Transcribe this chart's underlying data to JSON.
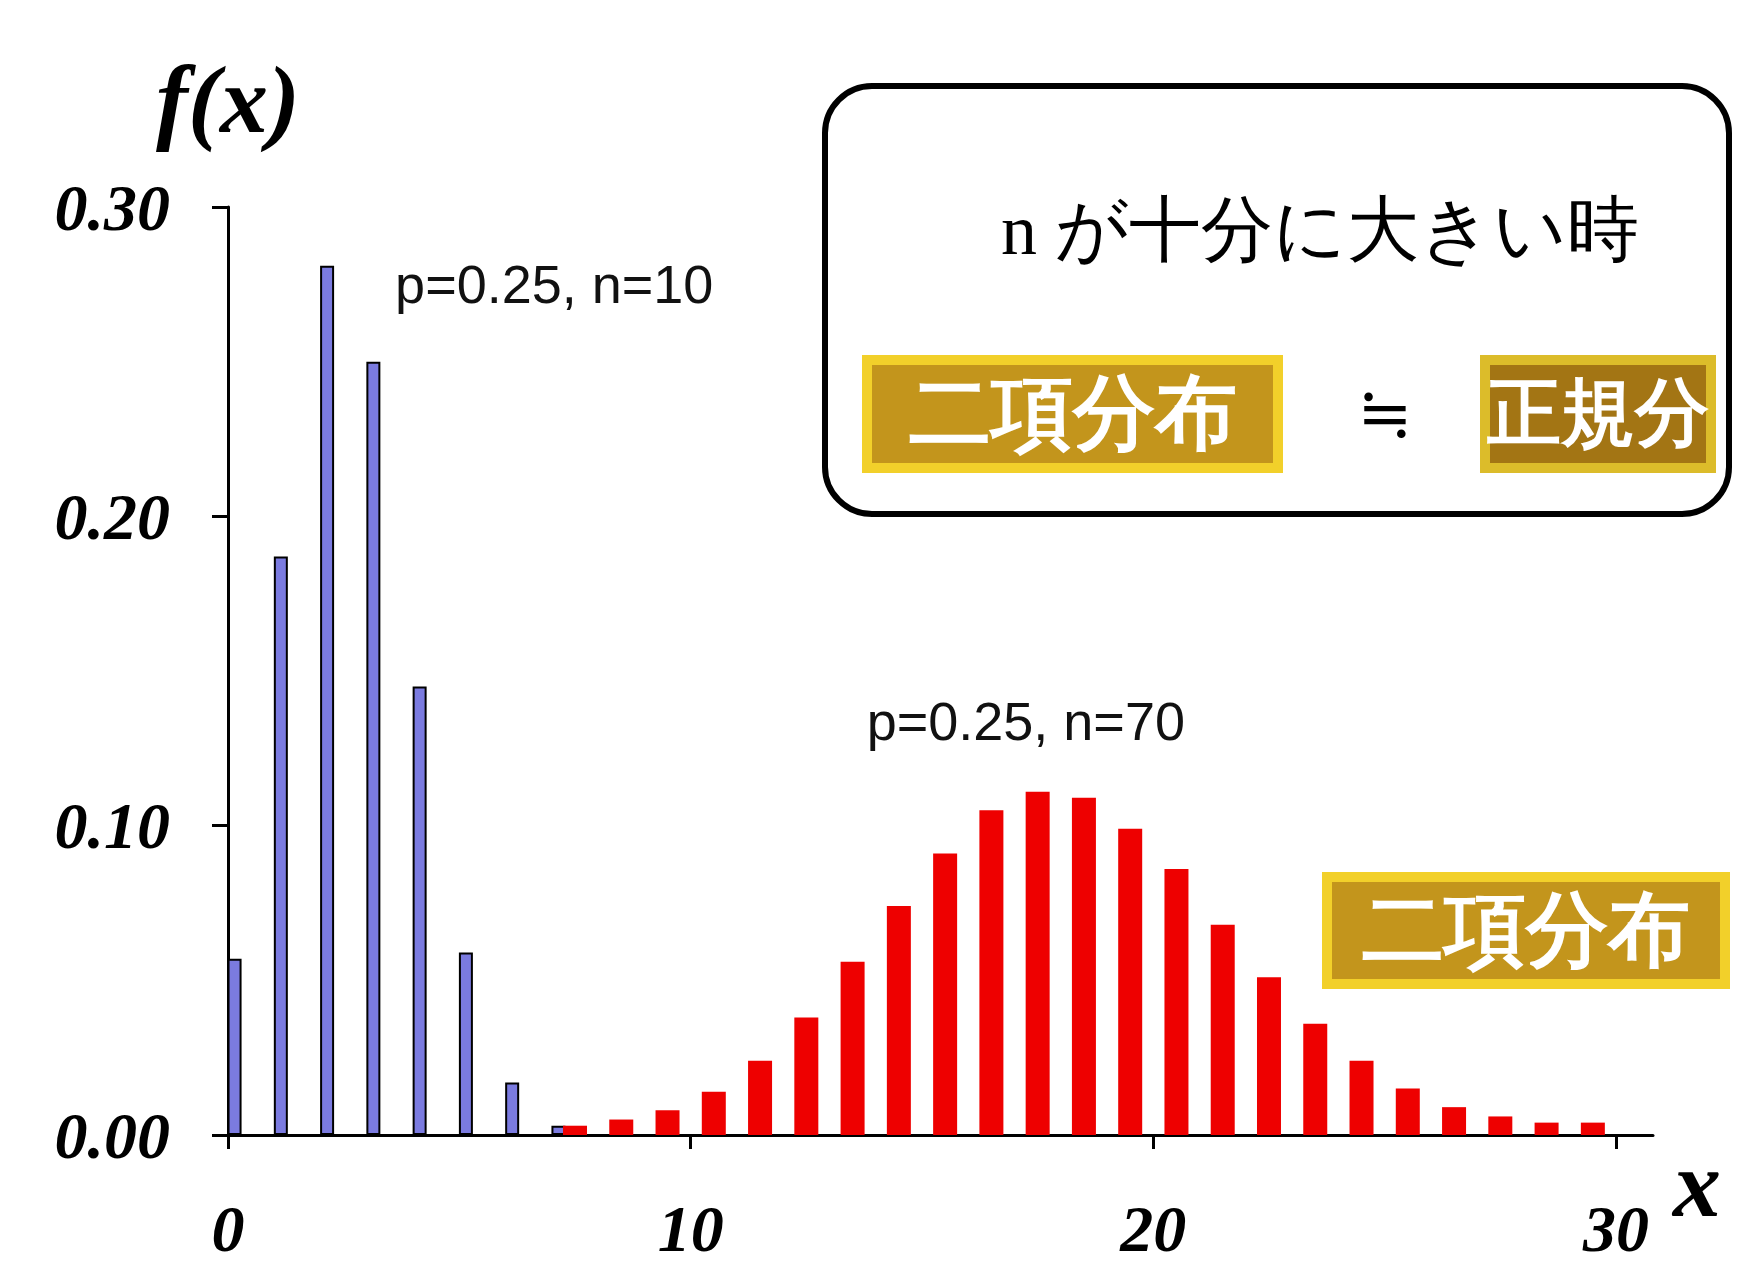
{
  "chart_data": {
    "type": "bar",
    "xlabel": "x",
    "ylabel": "f(x)",
    "xlim": [
      0,
      30.8
    ],
    "xticks": [
      0,
      10,
      20,
      30
    ],
    "ylim": [
      0,
      0.3
    ],
    "yticks": [
      {
        "value": 0,
        "label": "0.00"
      },
      {
        "value": 0.1,
        "label": "0.10"
      },
      {
        "value": 0.2,
        "label": "0.20"
      },
      {
        "value": 0.3,
        "label": "0.30"
      }
    ],
    "series": [
      {
        "name": "p=0.25, n=10",
        "color": "#7b7be0",
        "x": [
          0.25,
          1.25,
          2.25,
          3.25,
          4.25,
          5.25,
          6.25,
          7.25
        ],
        "values": [
          0.057,
          0.187,
          0.281,
          0.25,
          0.145,
          0.059,
          0.017,
          0.003
        ]
      },
      {
        "name": "p=0.25, n=70",
        "color": "#ee0000",
        "x": [
          7.5,
          8.5,
          9.5,
          10.5,
          11.5,
          12.5,
          13.5,
          14.5,
          15.5,
          16.5,
          17.5,
          18.5,
          19.5,
          20.5,
          21.5,
          22.5,
          23.5,
          24.5,
          25.5,
          26.5,
          27.5,
          28.5,
          29.5
        ],
        "values": [
          0.003,
          0.005,
          0.008,
          0.014,
          0.024,
          0.038,
          0.056,
          0.074,
          0.091,
          0.105,
          0.111,
          0.109,
          0.099,
          0.086,
          0.068,
          0.051,
          0.036,
          0.024,
          0.015,
          0.009,
          0.006,
          0.004,
          0.004
        ]
      }
    ],
    "annotations": [
      "n が十分に大きい時",
      "二項分布",
      "≒",
      "正規分",
      "二項分布"
    ]
  }
}
